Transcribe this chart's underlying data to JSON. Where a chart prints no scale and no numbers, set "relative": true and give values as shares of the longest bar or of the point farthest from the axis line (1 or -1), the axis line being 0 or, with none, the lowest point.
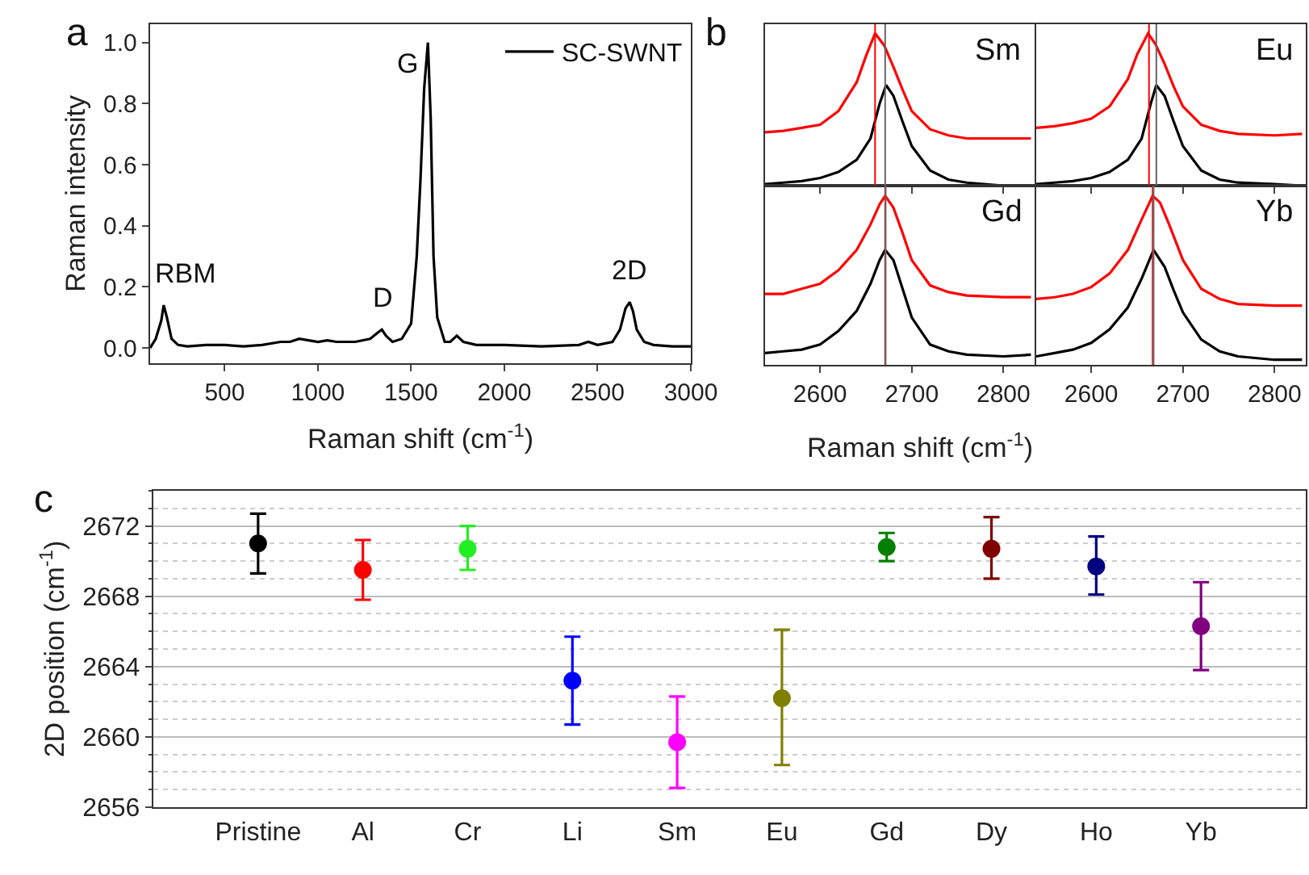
{
  "chart_data": [
    {
      "type": "line",
      "xlabel": "Raman shift (cm$^{-1}$)",
      "ylabel": "Raman intensity",
      "x": [
        100,
        130,
        160,
        173,
        190,
        215,
        250,
        300,
        400,
        500,
        600,
        700,
        800,
        850,
        900,
        950,
        1000,
        1050,
        1100,
        1200,
        1280,
        1320,
        1343,
        1365,
        1400,
        1450,
        1500,
        1530,
        1550,
        1570,
        1590,
        1605,
        1620,
        1640,
        1680,
        1710,
        1745,
        1780,
        1850,
        2000,
        2200,
        2400,
        2450,
        2500,
        2580,
        2620,
        2650,
        2672,
        2690,
        2710,
        2750,
        2800,
        2900,
        3000
      ],
      "series": [
        {
          "name": "SC-SWNT",
          "color": "#000000",
          "values": [
            0.0,
            0.03,
            0.09,
            0.14,
            0.1,
            0.03,
            0.01,
            0.005,
            0.01,
            0.01,
            0.005,
            0.01,
            0.02,
            0.02,
            0.03,
            0.025,
            0.02,
            0.025,
            0.02,
            0.02,
            0.03,
            0.05,
            0.06,
            0.04,
            0.02,
            0.03,
            0.08,
            0.3,
            0.55,
            0.85,
            1.0,
            0.75,
            0.3,
            0.1,
            0.02,
            0.02,
            0.04,
            0.02,
            0.01,
            0.01,
            0.005,
            0.01,
            0.02,
            0.01,
            0.02,
            0.06,
            0.13,
            0.15,
            0.12,
            0.06,
            0.02,
            0.01,
            0.005,
            0.005
          ]
        }
      ],
      "xlim": [
        100,
        3000
      ],
      "ylim": [
        -0.05,
        1.06
      ],
      "xticks": [
        500,
        1000,
        1500,
        2000,
        2500,
        3000
      ],
      "yticks": [
        {
          "value": 0,
          "label": "0.0"
        },
        {
          "value": 0.2,
          "label": "0.2"
        },
        {
          "value": 0.4,
          "label": "0.4"
        },
        {
          "value": 0.6,
          "label": "0.6"
        },
        {
          "value": 0.8,
          "label": "0.8"
        },
        {
          "value": 1,
          "label": "1.0"
        }
      ],
      "legend": "top right",
      "annotations": [
        "a",
        {
          "text": "RBM",
          "x": 173,
          "y": 0.14
        },
        {
          "text": "D",
          "x": 1343,
          "y": 0.06
        },
        {
          "text": "G",
          "x": 1590,
          "y": 1.0
        },
        {
          "text": "2D",
          "x": 2672,
          "y": 0.15
        }
      ]
    },
    {
      "type": "line",
      "relative": true,
      "title": "Sm",
      "tick_labels": false,
      "xlim": [
        2540,
        2834
      ],
      "xticks": [
        2600,
        2700,
        2800
      ],
      "annotations": [
        "b"
      ],
      "series": [
        {
          "color": "#ff0000",
          "x": [
            2540,
            2560,
            2580,
            2600,
            2620,
            2640,
            2650,
            2660,
            2670,
            2680,
            2690,
            2700,
            2720,
            2740,
            2760,
            2800,
            2830
          ],
          "values": [
            0.35,
            0.36,
            0.38,
            0.4,
            0.49,
            0.68,
            0.85,
            1.0,
            0.92,
            0.78,
            0.63,
            0.49,
            0.37,
            0.33,
            0.31,
            0.31,
            0.31
          ]
        },
        {
          "color": "#000000",
          "x": [
            2540,
            2560,
            2580,
            2600,
            2620,
            2640,
            2655,
            2665,
            2672,
            2680,
            2690,
            2700,
            2720,
            2740,
            2760,
            2800,
            2830
          ],
          "values": [
            0.01,
            0.02,
            0.03,
            0.05,
            0.09,
            0.17,
            0.31,
            0.54,
            0.66,
            0.59,
            0.42,
            0.26,
            0.1,
            0.04,
            0.02,
            0.0,
            0.0
          ]
        }
      ],
      "ref_lines": [
        {
          "axis": "x",
          "value": 2660,
          "color": "#ff0000"
        },
        {
          "axis": "x",
          "value": 2671,
          "color": "#666666"
        }
      ]
    },
    {
      "type": "line",
      "relative": true,
      "title": "Eu",
      "tick_labels": false,
      "xlim": [
        2540,
        2834
      ],
      "xticks": [
        2600,
        2700,
        2800
      ],
      "series": [
        {
          "color": "#ff0000",
          "x": [
            2540,
            2560,
            2580,
            2600,
            2620,
            2640,
            2650,
            2662,
            2670,
            2680,
            2690,
            2700,
            2720,
            2740,
            2760,
            2800,
            2830
          ],
          "values": [
            0.38,
            0.39,
            0.41,
            0.44,
            0.52,
            0.7,
            0.86,
            1.0,
            0.93,
            0.8,
            0.65,
            0.52,
            0.4,
            0.36,
            0.34,
            0.33,
            0.34
          ]
        },
        {
          "color": "#000000",
          "x": [
            2540,
            2560,
            2580,
            2600,
            2620,
            2640,
            2655,
            2665,
            2671,
            2680,
            2690,
            2700,
            2720,
            2740,
            2760,
            2800,
            2830
          ],
          "values": [
            0.01,
            0.02,
            0.03,
            0.05,
            0.09,
            0.17,
            0.31,
            0.54,
            0.66,
            0.59,
            0.42,
            0.26,
            0.1,
            0.04,
            0.02,
            0.01,
            0.0
          ]
        }
      ],
      "ref_lines": [
        {
          "axis": "x",
          "value": 2663,
          "color": "#ff0000"
        },
        {
          "axis": "x",
          "value": 2671,
          "color": "#666666"
        }
      ]
    },
    {
      "type": "line",
      "relative": true,
      "title": "Gd",
      "tick_labels": "x",
      "xlim": [
        2540,
        2834
      ],
      "xticks": [
        2600,
        2700,
        2800
      ],
      "xlabel": "Raman shift (cm$^{-1}$)",
      "series": [
        {
          "color": "#ff0000",
          "x": [
            2540,
            2560,
            2580,
            2600,
            2620,
            2640,
            2655,
            2665,
            2671,
            2680,
            2690,
            2700,
            2720,
            2740,
            2760,
            2800,
            2830
          ],
          "values": [
            0.42,
            0.42,
            0.45,
            0.48,
            0.56,
            0.68,
            0.83,
            0.95,
            1.0,
            0.93,
            0.78,
            0.62,
            0.47,
            0.43,
            0.41,
            0.4,
            0.4
          ]
        },
        {
          "color": "#000000",
          "x": [
            2540,
            2560,
            2580,
            2600,
            2620,
            2640,
            2655,
            2665,
            2671,
            2680,
            2690,
            2700,
            2720,
            2740,
            2760,
            2800,
            2830
          ],
          "values": [
            0.07,
            0.08,
            0.09,
            0.12,
            0.2,
            0.32,
            0.48,
            0.62,
            0.68,
            0.62,
            0.45,
            0.28,
            0.12,
            0.08,
            0.06,
            0.05,
            0.06
          ]
        }
      ],
      "ref_lines": [
        {
          "axis": "x",
          "value": 2671,
          "color": "#ff0000"
        },
        {
          "axis": "x",
          "value": 2671.5,
          "color": "#666666"
        }
      ]
    },
    {
      "type": "line",
      "relative": true,
      "title": "Yb",
      "tick_labels": "x",
      "xlim": [
        2540,
        2834
      ],
      "xticks": [
        2600,
        2700,
        2800
      ],
      "series": [
        {
          "color": "#ff0000",
          "x": [
            2540,
            2560,
            2580,
            2600,
            2620,
            2640,
            2655,
            2667,
            2675,
            2685,
            2700,
            2720,
            2740,
            2760,
            2800,
            2830
          ],
          "values": [
            0.39,
            0.4,
            0.42,
            0.46,
            0.54,
            0.68,
            0.86,
            1.0,
            0.96,
            0.83,
            0.62,
            0.45,
            0.39,
            0.36,
            0.35,
            0.35
          ]
        },
        {
          "color": "#000000",
          "x": [
            2540,
            2560,
            2580,
            2600,
            2620,
            2640,
            2655,
            2668,
            2680,
            2690,
            2700,
            2720,
            2740,
            2760,
            2800,
            2830
          ],
          "values": [
            0.05,
            0.07,
            0.09,
            0.13,
            0.21,
            0.34,
            0.51,
            0.68,
            0.58,
            0.44,
            0.31,
            0.15,
            0.08,
            0.05,
            0.03,
            0.03
          ]
        }
      ],
      "ref_lines": [
        {
          "axis": "x",
          "value": 2667,
          "color": "#ff0000"
        },
        {
          "axis": "x",
          "value": 2668,
          "color": "#666666"
        }
      ]
    },
    {
      "type": "scatter",
      "ylabel": "2D position (cm$^{-1}$)",
      "marker": "circle",
      "grid": "y",
      "annotations": [
        "c"
      ],
      "categories": [
        "Pristine",
        "Al",
        "Cr",
        "Li",
        "Sm",
        "Eu",
        "Gd",
        "Dy",
        "Ho",
        "Yb"
      ],
      "values": [
        2671.0,
        2669.5,
        2670.7,
        2663.2,
        2659.7,
        2662.2,
        2670.8,
        2670.7,
        2669.7,
        2666.3
      ],
      "errors": [
        [
          2669.3,
          2672.7
        ],
        [
          2667.8,
          2671.2
        ],
        [
          2669.5,
          2672.0
        ],
        [
          2660.7,
          2665.7
        ],
        [
          2657.1,
          2662.3
        ],
        [
          2658.4,
          2666.1
        ],
        [
          2670.0,
          2671.6
        ],
        [
          2669.0,
          2672.5
        ],
        [
          2668.1,
          2671.4
        ],
        [
          2663.8,
          2668.8
        ]
      ],
      "colors": [
        "#000000",
        "#ff0000",
        "#22ee22",
        "#0000ff",
        "#ff00ff",
        "#808000",
        "#008000",
        "#800000",
        "#000080",
        "#800080"
      ],
      "ylim": [
        2656,
        2674
      ],
      "yticks": [
        2656,
        {
          "value": 2657,
          "label": null
        },
        {
          "value": 2658,
          "label": null
        },
        {
          "value": 2659,
          "label": null
        },
        2660,
        {
          "value": 2661,
          "label": null
        },
        {
          "value": 2662,
          "label": null
        },
        {
          "value": 2663,
          "label": null
        },
        2664,
        {
          "value": 2665,
          "label": null
        },
        {
          "value": 2666,
          "label": null
        },
        {
          "value": 2667,
          "label": null
        },
        2668,
        {
          "value": 2669,
          "label": null
        },
        {
          "value": 2670,
          "label": null
        },
        {
          "value": 2671,
          "label": null
        },
        2672,
        {
          "value": 2673,
          "label": null
        },
        {
          "value": 2674,
          "label": null
        }
      ]
    }
  ]
}
